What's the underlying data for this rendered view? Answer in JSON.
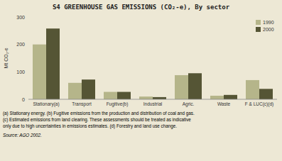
{
  "chart_data": {
    "type": "bar",
    "title": "S4   GREENHOUSE GAS EMISSIONS (CO₂-e), By sector",
    "ylabel": "Mt CO₂-e",
    "categories": [
      "Stationary(a)",
      "Transport",
      "Fugitive(b)",
      "Industrial",
      "Agric.",
      "Waste",
      "F & LUC(c)(d)"
    ],
    "series": [
      {
        "name": "1990",
        "color": "#b5b58a",
        "values": [
          200,
          60,
          27,
          10,
          88,
          13,
          70
        ]
      },
      {
        "name": "2000",
        "color": "#555535",
        "values": [
          258,
          72,
          27,
          8,
          95,
          16,
          38
        ]
      }
    ],
    "ylim": [
      0,
      300
    ],
    "yticks": [
      0,
      100,
      200,
      300
    ],
    "grid": false,
    "legend": "upper right",
    "annotations": [
      "(a) Stationary energy.  (b) Fugitive emissions from  the production and distribution of coal and gas.",
      "(c) Estimated emissions from land clearing. These assessments should be treated as indicative",
      "only due to high uncertainties in emissions estimates. (d) Forestry and land use change.",
      "Source: AGO 2002."
    ]
  }
}
